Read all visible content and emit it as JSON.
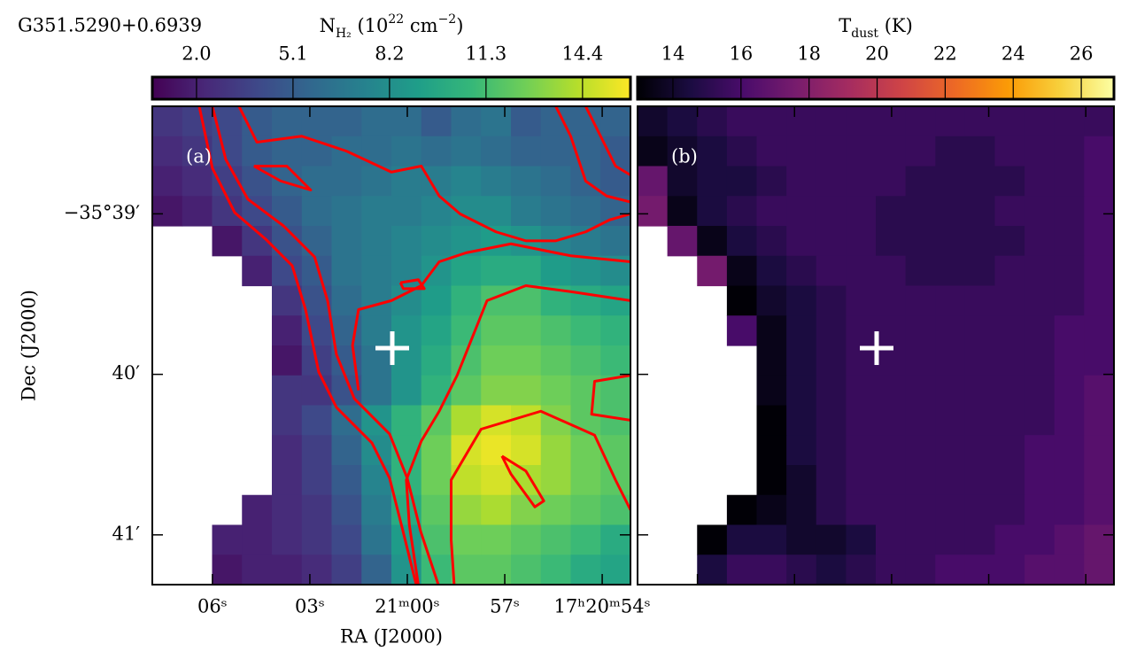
{
  "chart_data": [
    {
      "type": "heatmap",
      "title": "G351.5290+0.6939",
      "panel_label": "(a)",
      "colorbar_label": [
        {
          "text": "N"
        },
        {
          "text": "H₂",
          "shift": "sub"
        },
        {
          "text": " (10"
        },
        {
          "text": "22",
          "shift": "super"
        },
        {
          "text": " cm"
        },
        {
          "text": "−2",
          "shift": "super"
        },
        {
          "text": ")"
        }
      ],
      "clim": [
        0.58,
        15.94
      ],
      "cticks": [
        {
          "value": 2,
          "label": "2.0"
        },
        5.1,
        8.2,
        11.3,
        14.4
      ],
      "colormap": [
        "#440154",
        "#482878",
        "#3e4989",
        "#31688e",
        "#26828e",
        "#1f9e89",
        "#35b779",
        "#6ece58",
        "#b5de2b",
        "#fde725"
      ],
      "x_label": "RA (J2000)",
      "y_label": "Dec (J2000)",
      "xlim": [
        7.85,
        -6.87
      ],
      "xticks": [
        {
          "value": 6,
          "label": "06ˢ"
        },
        {
          "value": 3,
          "label": "03ˢ"
        },
        {
          "value": 0,
          "label": "21ᵐ00ˢ"
        },
        {
          "value": -3,
          "label": "57ˢ"
        },
        {
          "value": -6,
          "label": "17ʰ20ᵐ54ˢ"
        }
      ],
      "ylim": [
        -38.33,
        -41.31
      ],
      "yticks": [
        {
          "value": -39,
          "label": "−35°39′"
        },
        {
          "value": -40,
          "label": "40′"
        },
        {
          "value": -41,
          "label": "41′"
        }
      ],
      "marker": [
        8.03,
        8.09
      ],
      "marker_color": "#ffffff",
      "contour_color": "#ff0000",
      "values": [
        [
          3,
          3.5,
          4,
          5,
          5.5,
          5.5,
          5.5,
          6,
          6,
          5,
          6,
          6.5,
          5,
          5.5,
          5.5,
          5.5
        ],
        [
          2.5,
          3,
          4,
          5,
          5.5,
          5.5,
          6,
          6,
          6.5,
          6,
          6.5,
          6,
          5.5,
          5.5,
          5.5,
          5
        ],
        [
          2,
          2.5,
          3.5,
          4.5,
          5.5,
          6,
          6,
          6.5,
          7,
          7,
          7.5,
          7,
          6.5,
          6,
          5.5,
          5
        ],
        [
          1.5,
          2,
          3,
          4,
          5,
          6,
          6.5,
          7,
          7,
          7.5,
          8,
          8,
          7,
          6.5,
          6,
          5.5
        ],
        [
          null,
          null,
          1.5,
          3,
          4.5,
          5.5,
          6.5,
          7,
          7.5,
          8,
          8.5,
          9,
          8.5,
          7.5,
          7,
          6.5
        ],
        [
          null,
          null,
          null,
          2,
          4,
          5,
          6.5,
          7,
          7.5,
          8.5,
          9.5,
          10,
          10,
          9,
          8.5,
          8
        ],
        [
          null,
          null,
          null,
          null,
          3,
          4.5,
          6,
          7,
          8,
          9,
          10.5,
          11.5,
          11.5,
          10.5,
          10,
          9.5
        ],
        [
          null,
          null,
          null,
          null,
          2,
          4,
          5.5,
          7,
          8.5,
          9.5,
          11,
          12,
          12,
          11.5,
          11,
          10.5
        ],
        [
          null,
          null,
          null,
          null,
          1.5,
          3.5,
          5,
          6.5,
          8.5,
          10,
          11.5,
          12.5,
          12.5,
          12,
          11.5,
          11
        ],
        [
          null,
          null,
          null,
          null,
          3,
          3,
          4.5,
          6.5,
          8.5,
          10.5,
          12,
          13,
          13,
          12.5,
          12,
          11.5
        ],
        [
          null,
          null,
          null,
          null,
          3,
          4,
          6,
          8.5,
          10.5,
          12,
          14,
          15,
          14.5,
          13,
          12,
          11.5
        ],
        [
          null,
          null,
          null,
          null,
          2.5,
          3.5,
          5.5,
          8,
          10.5,
          12.5,
          15,
          15.5,
          15,
          13.5,
          12.5,
          12
        ],
        [
          null,
          null,
          null,
          null,
          2.5,
          3.5,
          5,
          7.5,
          10.5,
          12.5,
          14.5,
          15,
          14,
          13.5,
          12.5,
          12
        ],
        [
          null,
          null,
          null,
          2,
          2.5,
          3,
          4.5,
          7,
          10,
          12,
          13.5,
          14,
          13,
          12.5,
          12,
          11.5
        ],
        [
          null,
          null,
          2,
          2,
          2.5,
          3,
          4,
          6.5,
          9,
          11.5,
          12.5,
          12.5,
          12,
          11.5,
          11,
          10
        ],
        [
          null,
          null,
          1.5,
          2,
          2,
          2.5,
          3.5,
          5.5,
          8.5,
          11,
          12,
          12,
          11.5,
          11,
          10,
          9.5
        ]
      ],
      "contours": [
        {
          "x": [
            1.57,
            2.01,
            2.76,
            3.79,
            4.68,
            5.13,
            5.57,
            6.16,
            7.35,
            7.94,
            8.39,
            8.83
          ],
          "y": [
            0,
            2.07,
            3.56,
            4.44,
            5.33,
            6.81,
            8.89,
            10.07,
            11.26,
            12.44,
            14.22,
            16
          ]
        },
        {
          "x": [
            2.01,
            2.46,
            3.2,
            4.39,
            5.43,
            5.87,
            6.16,
            6.76,
            7.94,
            8.53,
            8.98,
            9.57
          ],
          "y": [
            0,
            1.78,
            3.11,
            4.0,
            5.04,
            6.52,
            8.3,
            9.78,
            10.96,
            12.44,
            14.22,
            16
          ]
        },
        {
          "x": [
            2.9,
            3.5,
            5.0,
            6.5,
            8.0,
            9.0,
            9.6,
            10.3,
            11.5,
            12.5,
            13.5,
            14.5,
            15.3,
            16
          ],
          "y": [
            0,
            1.2,
            1.0,
            1.5,
            2.2,
            2.0,
            3.0,
            3.6,
            4.2,
            4.5,
            4.5,
            4.2,
            3.8,
            3.6
          ]
        },
        {
          "x": [
            13.5,
            14.0,
            14.5,
            15.2,
            16
          ],
          "y": [
            0,
            1.0,
            2.5,
            3.0,
            3.2
          ]
        },
        {
          "x": [
            14.5,
            15.0,
            15.5,
            16
          ],
          "y": [
            0,
            1.0,
            2.0,
            2.3
          ]
        },
        {
          "x": [
            6.9,
            6.7,
            6.9,
            8.0,
            9.0,
            9.6,
            10.5,
            12.0,
            14.0,
            16
          ],
          "y": [
            9.5,
            8.0,
            6.8,
            6.5,
            6.0,
            5.2,
            4.9,
            4.6,
            5.0,
            5.2
          ]
        },
        {
          "x": [
            8.9,
            8.6,
            8.5,
            9.0,
            9.6,
            10.2,
            10.8,
            11.2,
            12.5,
            14,
            16
          ],
          "y": [
            16,
            14,
            12.5,
            11.2,
            10.2,
            9.0,
            7.5,
            6.5,
            6.0,
            6.2,
            6.5
          ]
        },
        {
          "x": [
            10.1,
            10.0,
            10.0,
            11,
            13,
            14.8,
            15.5,
            16
          ],
          "y": [
            16,
            14.5,
            12.5,
            10.8,
            10.2,
            11,
            12.5,
            13.5
          ]
        },
        {
          "x": [
            11.7,
            12.5,
            13.1,
            12.8,
            12.0,
            11.7
          ],
          "y": [
            11.7,
            12.2,
            13.2,
            13.4,
            12.3,
            11.7
          ]
        },
        {
          "x": [
            16,
            14.8,
            14.7,
            16
          ],
          "y": [
            9.0,
            9.2,
            10.3,
            10.5
          ]
        },
        {
          "x": [
            8.3,
            8.9,
            9.1,
            8.4,
            8.3
          ],
          "y": [
            5.9,
            5.8,
            6.1,
            6.1,
            5.9
          ]
        },
        {
          "x": [
            3.4,
            4.5,
            5.3,
            4.3,
            3.4
          ],
          "y": [
            2.0,
            2.0,
            2.8,
            2.5,
            2.0
          ]
        }
      ]
    },
    {
      "type": "heatmap",
      "panel_label": "(b)",
      "colorbar_label": [
        {
          "text": "T"
        },
        {
          "text": "dust",
          "shift": "sub"
        },
        {
          "text": " (K)"
        }
      ],
      "clim": [
        12.96,
        26.96
      ],
      "cticks": [
        14,
        16,
        18,
        20,
        22,
        24,
        26
      ],
      "colormap": [
        "#000004",
        "#1b0c41",
        "#4a0c6b",
        "#781c6d",
        "#a52c60",
        "#cf4446",
        "#ed6925",
        "#fb9b06",
        "#f7d13d",
        "#fcffa4"
      ],
      "marker": [
        8.03,
        8.09
      ],
      "marker_color": "#ffffff",
      "values": [
        [
          14,
          14.5,
          15,
          15.5,
          15.5,
          15.5,
          15.5,
          15.5,
          15.5,
          15.5,
          15.5,
          15.5,
          15.5,
          15.5,
          15.5,
          15.5
        ],
        [
          13.5,
          14,
          14.5,
          15,
          15.5,
          15.5,
          15.5,
          15.5,
          15.5,
          15.5,
          15,
          15,
          15.5,
          15.5,
          15.5,
          16
        ],
        [
          17,
          14,
          14.5,
          14.5,
          15,
          15.5,
          15.5,
          15.5,
          15.5,
          15,
          15,
          15,
          15,
          15.5,
          15.5,
          16
        ],
        [
          17.5,
          13.5,
          14.5,
          15,
          15.5,
          15.5,
          15.5,
          15.5,
          15,
          15,
          15,
          15,
          15.5,
          15.5,
          15.5,
          16
        ],
        [
          null,
          17,
          13.5,
          14.5,
          15,
          15.5,
          15.5,
          15.5,
          15,
          15,
          15,
          15,
          15,
          15.5,
          15.5,
          16
        ],
        [
          null,
          null,
          17.5,
          13.5,
          14.5,
          15,
          15.5,
          15.5,
          15.5,
          15,
          15,
          15,
          15.5,
          15.5,
          15.5,
          16
        ],
        [
          null,
          null,
          null,
          13,
          14,
          14.5,
          15,
          15.5,
          15.5,
          15.5,
          15.5,
          15.5,
          15.5,
          15.5,
          15.5,
          16
        ],
        [
          null,
          null,
          null,
          16,
          13.5,
          14.5,
          15,
          15.5,
          15.5,
          15.5,
          15.5,
          15.5,
          15.5,
          15.5,
          16,
          16
        ],
        [
          null,
          null,
          null,
          null,
          13.5,
          14.5,
          15,
          15.5,
          15.5,
          15.5,
          15.5,
          15.5,
          15.5,
          15.5,
          16,
          16
        ],
        [
          null,
          null,
          null,
          null,
          13.5,
          14.5,
          15,
          15.5,
          15.5,
          15.5,
          15.5,
          15.5,
          15.5,
          15.5,
          16,
          16.5
        ],
        [
          null,
          null,
          null,
          null,
          13,
          14.5,
          15,
          15.5,
          15.5,
          15.5,
          15.5,
          15.5,
          15.5,
          15.5,
          16,
          16.5
        ],
        [
          null,
          null,
          null,
          null,
          13,
          14.5,
          15,
          15.5,
          15.5,
          15.5,
          15.5,
          15.5,
          15.5,
          16,
          16,
          16.5
        ],
        [
          null,
          null,
          null,
          null,
          13,
          14,
          15,
          15.5,
          15.5,
          15.5,
          15.5,
          15.5,
          15.5,
          16,
          16,
          16.5
        ],
        [
          null,
          null,
          null,
          13,
          13.5,
          14,
          15,
          15.5,
          15.5,
          15.5,
          15.5,
          15.5,
          15.5,
          16,
          16,
          16.5
        ],
        [
          null,
          null,
          13,
          14.5,
          14.5,
          14,
          14,
          14.5,
          15.5,
          15.5,
          15.5,
          15.5,
          16,
          16,
          16.5,
          17
        ],
        [
          null,
          null,
          14.5,
          15.5,
          15.5,
          15,
          14.5,
          15,
          15.5,
          15.5,
          16,
          16,
          16,
          16.5,
          16.5,
          17
        ]
      ]
    }
  ]
}
